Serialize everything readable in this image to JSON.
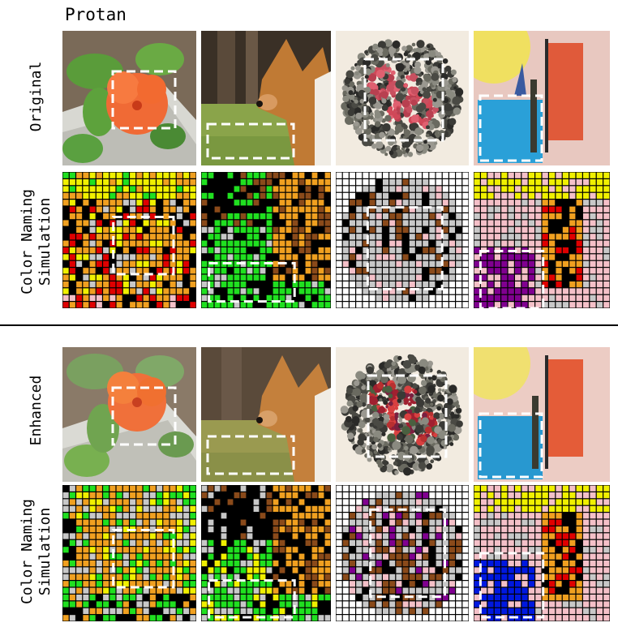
{
  "title": "Protan",
  "sections": [
    {
      "rows": [
        {
          "label_lines": [
            "Original"
          ]
        },
        {
          "label_lines": [
            "Color Naming",
            "Simulation"
          ]
        }
      ]
    },
    {
      "rows": [
        {
          "label_lines": [
            "Enhanced"
          ]
        },
        {
          "label_lines": [
            "Color Naming",
            "Simulation"
          ]
        }
      ]
    }
  ],
  "columns": [
    {
      "subject": "flower"
    },
    {
      "subject": "dog"
    },
    {
      "subject": "ishihara-plate",
      "plate_number": "96"
    },
    {
      "subject": "abstract-painting"
    }
  ],
  "colors": {
    "naming_palette": [
      "#000000",
      "#ff0000",
      "#ffa500",
      "#ffff00",
      "#00cc00",
      "#0000ff",
      "#800080",
      "#8b4513",
      "#c0c0c0",
      "#ffc0cb",
      "#ffffff"
    ],
    "highlight_box": "#ffffff"
  }
}
